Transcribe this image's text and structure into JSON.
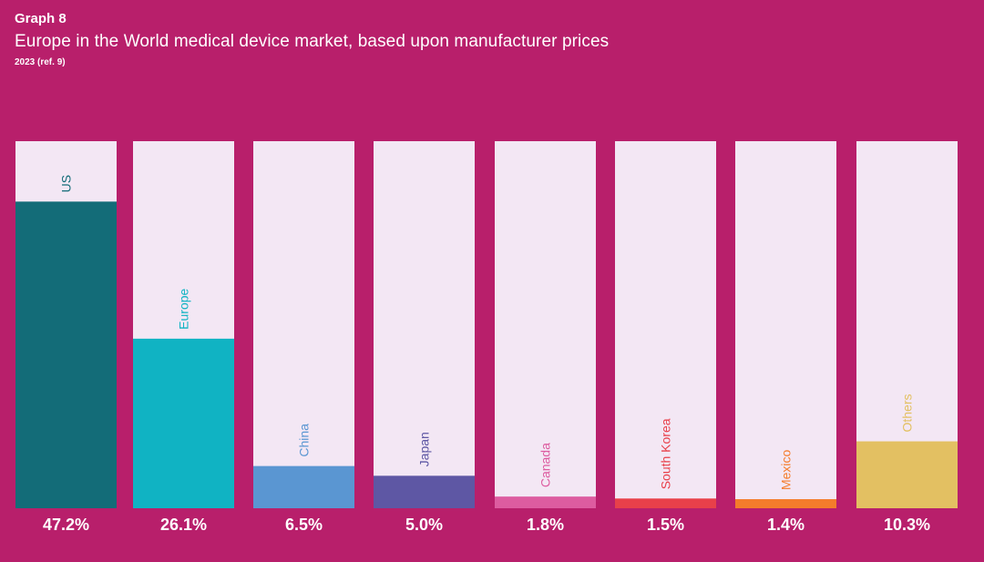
{
  "header": {
    "graph_label": "Graph 8",
    "title": "Europe in the World medical device market, based upon manufacturer prices",
    "subtitle": "2023 (ref. 9)"
  },
  "colors": {
    "background": "#b81f6b",
    "column_background": "#f3e7f4",
    "value_label": "#ffffff"
  },
  "chart_data": {
    "type": "bar",
    "title": "Europe in the World medical device market, based upon manufacturer prices",
    "subtitle": "2023 (ref. 9)",
    "xlabel": "",
    "ylabel": "",
    "ylim": [
      0,
      56.5
    ],
    "grid": false,
    "legend": "none",
    "categories": [
      "US",
      "Europe",
      "China",
      "Japan",
      "Canada",
      "South Korea",
      "Mexico",
      "Others"
    ],
    "values": [
      47.2,
      26.1,
      6.5,
      5.0,
      1.8,
      1.5,
      1.4,
      10.3
    ],
    "value_labels": [
      "47.2%",
      "26.1%",
      "6.5%",
      "5.0%",
      "1.8%",
      "1.5%",
      "1.4%",
      "10.3%"
    ],
    "bar_colors": [
      "#136c78",
      "#10b3c3",
      "#5a96d2",
      "#5e57a4",
      "#dd5ca0",
      "#e8404a",
      "#f47c2b",
      "#e3c062"
    ],
    "label_colors": [
      "#136c78",
      "#10b3c3",
      "#5a96d2",
      "#5e57a4",
      "#dd5ca0",
      "#e8404a",
      "#f47c2b",
      "#e3c062"
    ]
  }
}
